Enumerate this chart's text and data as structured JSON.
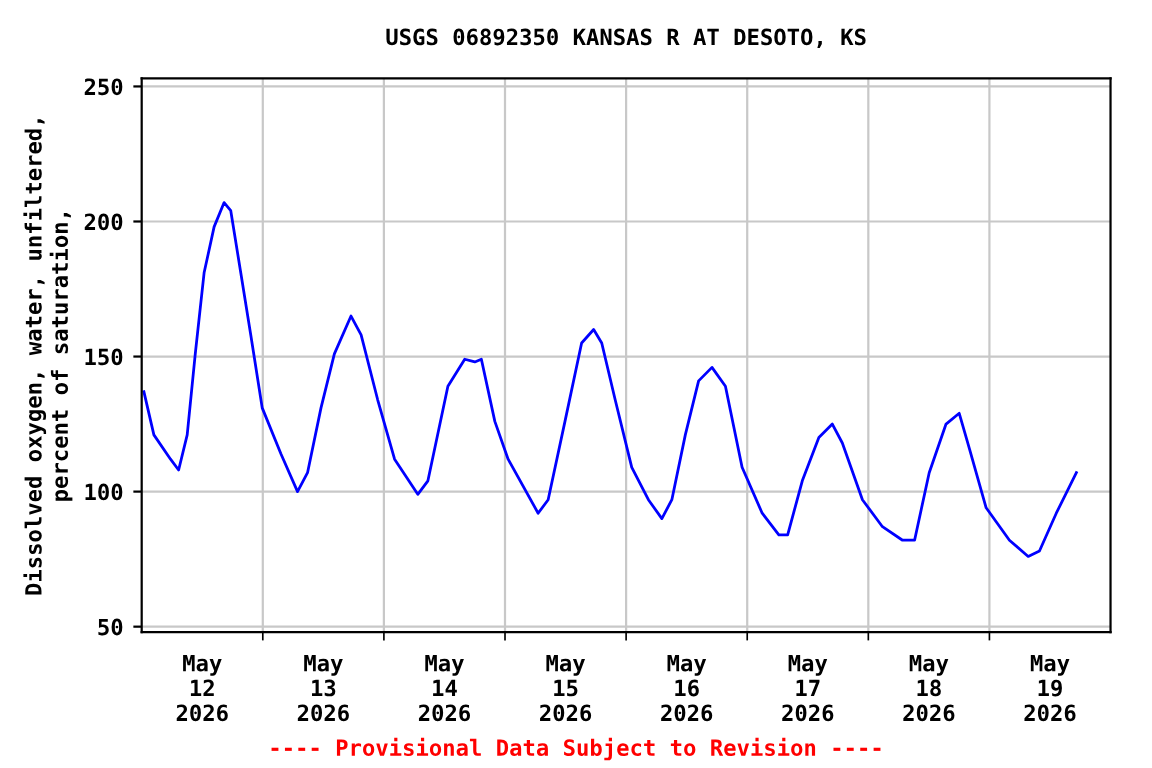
{
  "chart_data": {
    "type": "line",
    "title": "USGS 06892350 KANSAS R AT DESOTO, KS",
    "ylabel": "Dissolved oxygen, water, unfiltered,\npercent of saturation,",
    "annotations": [
      "---- Provisional Data Subject to Revision ----"
    ],
    "series": [
      {
        "color": "#0000ff",
        "x": [
          "2026-05-12T00:26",
          "2026-05-12T02:25",
          "2026-05-12T05:43",
          "2026-05-12T07:19",
          "2026-05-12T09:01",
          "2026-05-12T10:37",
          "2026-05-12T12:22",
          "2026-05-12T14:21",
          "2026-05-12T16:20",
          "2026-05-12T17:39",
          "2026-05-12T19:38",
          "2026-05-12T21:37",
          "2026-05-12T23:53",
          "2026-05-13T03:35",
          "2026-05-13T06:53",
          "2026-05-13T08:52",
          "2026-05-13T11:32",
          "2026-05-13T14:11",
          "2026-05-13T17:29",
          "2026-05-13T19:29",
          "2026-05-13T22:46",
          "2026-05-14T02:07",
          "2026-05-14T06:43",
          "2026-05-14T08:43",
          "2026-05-14T12:41",
          "2026-05-14T16:01",
          "2026-05-14T18:01",
          "2026-05-14T19:19",
          "2026-05-14T21:59",
          "2026-05-15T00:37",
          "2026-05-15T06:34",
          "2026-05-15T08:33",
          "2026-05-15T11:53",
          "2026-05-15T15:11",
          "2026-05-15T17:34",
          "2026-05-15T19:10",
          "2026-05-15T21:50",
          "2026-05-16T01:07",
          "2026-05-16T04:25",
          "2026-05-16T07:05",
          "2026-05-16T09:04",
          "2026-05-16T11:44",
          "2026-05-16T14:22",
          "2026-05-16T17:01",
          "2026-05-16T19:41",
          "2026-05-16T22:59",
          "2026-05-17T02:58",
          "2026-05-17T06:16",
          "2026-05-17T08:01",
          "2026-05-17T10:55",
          "2026-05-17T14:12",
          "2026-05-17T16:52",
          "2026-05-17T18:51",
          "2026-05-17T22:50",
          "2026-05-18T02:48",
          "2026-05-18T06:47",
          "2026-05-18T09:10",
          "2026-05-18T12:04",
          "2026-05-18T15:24",
          "2026-05-18T18:01",
          "2026-05-18T20:01",
          "2026-05-18T23:21",
          "2026-05-19T03:58",
          "2026-05-19T07:41",
          "2026-05-19T09:55",
          "2026-05-19T13:15",
          "2026-05-19T17:14"
        ],
        "values": [
          137,
          121,
          112,
          108,
          121,
          151,
          181,
          198,
          207,
          204,
          181,
          158,
          131,
          114,
          100,
          107,
          131,
          151,
          165,
          158,
          134,
          112,
          99,
          104,
          139,
          149,
          148,
          149,
          126,
          112,
          92,
          97,
          126,
          155,
          160,
          155,
          134,
          109,
          97,
          90,
          97,
          121,
          141,
          146,
          139,
          109,
          92,
          84,
          84,
          104,
          120,
          125,
          118,
          97,
          87,
          82,
          82,
          107,
          125,
          129,
          116,
          94,
          82,
          76,
          78,
          92,
          107
        ]
      }
    ],
    "xlim": [
      "2026-05-12",
      "2026-05-20"
    ],
    "xticks": [
      {
        "value": "2026-05-12T12:00",
        "label": "May\n12\n2026"
      },
      {
        "value": "2026-05-13T12:00",
        "label": "May\n13\n2026"
      },
      {
        "value": "2026-05-14T12:00",
        "label": "May\n14\n2026"
      },
      {
        "value": "2026-05-15T12:00",
        "label": "May\n15\n2026"
      },
      {
        "value": "2026-05-16T12:00",
        "label": "May\n16\n2026"
      },
      {
        "value": "2026-05-17T12:00",
        "label": "May\n17\n2026"
      },
      {
        "value": "2026-05-18T12:00",
        "label": "May\n18\n2026"
      },
      {
        "value": "2026-05-19T12:00",
        "label": "May\n19\n2026"
      },
      {
        "value": "2026-05-13",
        "label": null
      },
      {
        "value": "2026-05-14",
        "label": null
      },
      {
        "value": "2026-05-15",
        "label": null
      },
      {
        "value": "2026-05-16",
        "label": null
      },
      {
        "value": "2026-05-17",
        "label": null
      },
      {
        "value": "2026-05-18",
        "label": null
      },
      {
        "value": "2026-05-19",
        "label": null
      }
    ],
    "ylim": [
      48,
      253
    ],
    "yticks": [
      50,
      100,
      150,
      200,
      250
    ],
    "grid": true,
    "line_style": "solid",
    "marker": "none",
    "legend": false
  }
}
